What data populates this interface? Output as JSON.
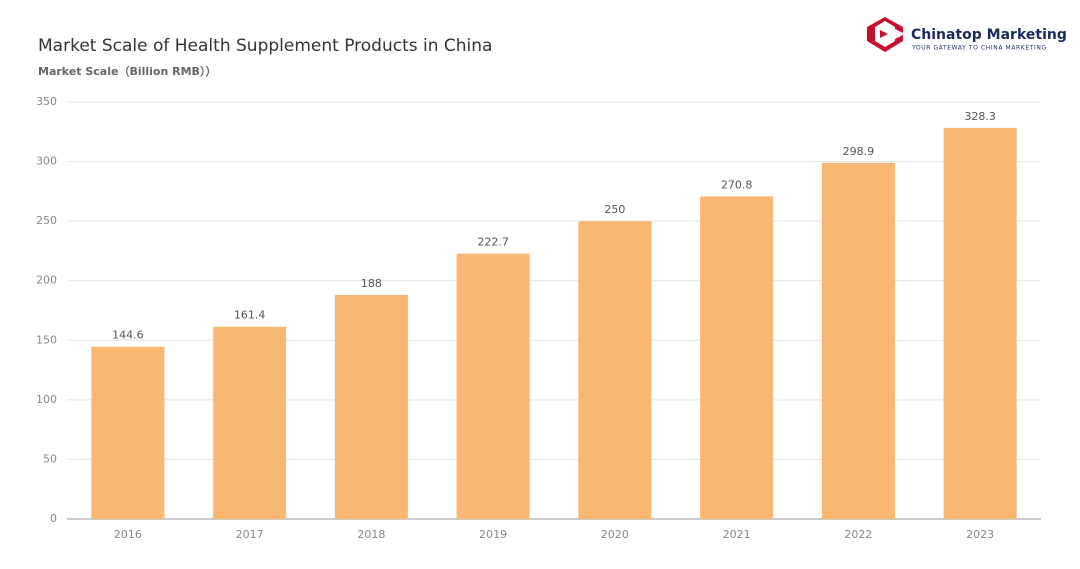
{
  "chart_data": {
    "type": "bar",
    "title": "Market Scale of Health Supplement Products in China",
    "subtitle": "Market Scale（Billion RMB））",
    "categories": [
      "2016",
      "2017",
      "2018",
      "2019",
      "2020",
      "2021",
      "2022",
      "2023"
    ],
    "values": [
      144.6,
      161.4,
      188,
      222.7,
      250,
      270.8,
      298.9,
      328.3
    ],
    "color": "#f8b872",
    "ylim": [
      0,
      350
    ],
    "yticks": [
      0,
      50,
      100,
      150,
      200,
      250,
      300,
      350
    ],
    "grid": true
  },
  "logo": {
    "name": "Chinatop Marketing",
    "tagline": "YOUR GATEWAY TO CHINA MARKETING"
  }
}
